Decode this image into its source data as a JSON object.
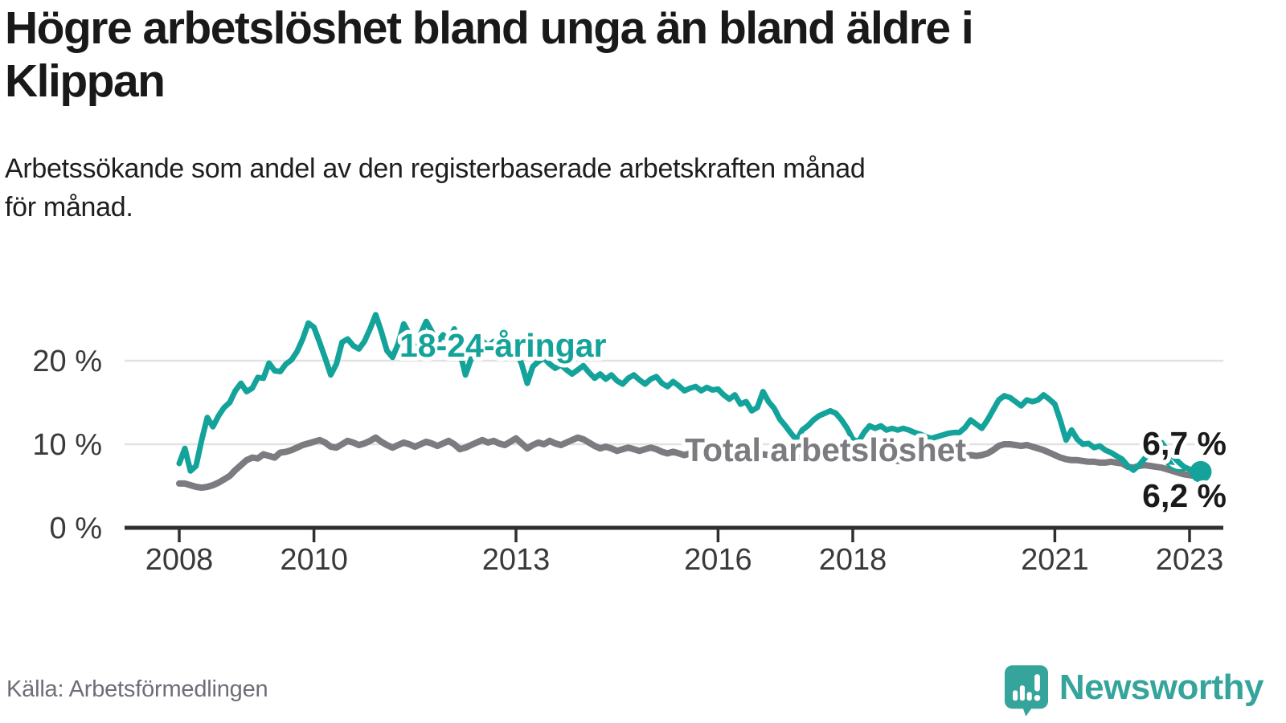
{
  "header": {
    "title_lines": [
      "Högre arbetslöshet bland unga än bland äldre i",
      "Klippan"
    ],
    "subtitle_lines": [
      "Arbetssökande som andel av den registerbaserade arbetskraften månad",
      "för månad."
    ]
  },
  "footer": {
    "source": "Källa: Arbetsförmedlingen",
    "brand": "Newsworthy"
  },
  "colors": {
    "youth_line": "#14a39a",
    "total_line": "#7b7b80",
    "end_label_text": "#1a1a1a",
    "axis_text": "#3a3a3a",
    "grid_line": "#e2e2e2",
    "axis_line": "#2f2f2f",
    "source_text": "#6e6e78",
    "brand_teal": "#35a49b"
  },
  "chart_data": {
    "type": "line",
    "unit": "%",
    "frequency": "monthly",
    "start": "2008-01",
    "end": "2023-03",
    "grid": "horizontal",
    "ylim": [
      0,
      27
    ],
    "x_ticks": [
      2008,
      2010,
      2013,
      2016,
      2018,
      2021,
      2023
    ],
    "y_ticks": [
      {
        "value": 0,
        "label": "0 %"
      },
      {
        "value": 10,
        "label": "10 %"
      },
      {
        "value": 20,
        "label": "20 %"
      }
    ],
    "series": [
      {
        "name": "Total arbetslöshet",
        "color": "#7b7b80",
        "end_label": "6,2 %",
        "values": [
          5.3,
          5.3,
          5.1,
          4.9,
          4.8,
          4.9,
          5.1,
          5.4,
          5.8,
          6.2,
          6.9,
          7.5,
          8.1,
          8.4,
          8.3,
          8.8,
          8.6,
          8.4,
          9.0,
          9.1,
          9.3,
          9.6,
          9.9,
          10.1,
          10.3,
          10.5,
          10.2,
          9.7,
          9.6,
          10.0,
          10.4,
          10.2,
          9.9,
          10.1,
          10.4,
          10.8,
          10.3,
          9.9,
          9.6,
          9.9,
          10.2,
          10.0,
          9.7,
          10.0,
          10.3,
          10.1,
          9.8,
          10.1,
          10.4,
          10.0,
          9.4,
          9.6,
          9.9,
          10.2,
          10.5,
          10.2,
          10.4,
          10.1,
          9.9,
          10.3,
          10.7,
          10.1,
          9.5,
          9.9,
          10.2,
          10.0,
          10.4,
          10.1,
          9.9,
          10.2,
          10.5,
          10.8,
          10.6,
          10.2,
          9.8,
          9.5,
          9.7,
          9.5,
          9.2,
          9.4,
          9.6,
          9.4,
          9.2,
          9.4,
          9.6,
          9.4,
          9.1,
          8.9,
          9.1,
          8.9,
          8.7,
          8.9,
          9.1,
          8.9,
          8.7,
          8.8,
          9.0,
          8.8,
          8.6,
          8.7,
          8.5,
          8.6,
          8.4,
          8.6,
          8.8,
          8.7,
          8.5,
          8.6,
          8.7,
          8.5,
          8.4,
          8.5,
          8.6,
          8.8,
          8.9,
          8.7,
          8.6,
          8.5,
          8.4,
          8.5,
          8.6,
          8.4,
          8.3,
          8.4,
          8.5,
          8.3,
          8.2,
          8.1,
          8.0,
          8.1,
          8.2,
          8.3,
          8.4,
          8.3,
          8.2,
          8.3,
          8.4,
          8.5,
          8.6,
          8.5,
          8.6,
          8.7,
          8.6,
          8.7,
          8.9,
          9.3,
          9.8,
          10.0,
          10.0,
          9.9,
          9.8,
          9.9,
          9.7,
          9.5,
          9.3,
          9.0,
          8.7,
          8.4,
          8.2,
          8.1,
          8.1,
          8.0,
          7.9,
          7.9,
          7.8,
          7.8,
          7.9,
          7.8,
          7.7,
          7.3,
          7.2,
          7.4,
          7.5,
          7.4,
          7.3,
          7.2,
          7.0,
          6.8,
          6.6,
          6.4,
          6.3,
          6.2,
          6.2
        ]
      },
      {
        "name": "18-24-åringar",
        "color": "#14a39a",
        "end_label": "6,7 %",
        "values": [
          7.7,
          9.5,
          6.8,
          7.4,
          10.5,
          13.2,
          12.1,
          13.4,
          14.4,
          15.0,
          16.4,
          17.3,
          16.3,
          16.7,
          18.0,
          17.9,
          19.7,
          18.8,
          18.7,
          19.6,
          20.1,
          21.1,
          22.6,
          24.5,
          24.0,
          22.2,
          20.3,
          18.3,
          19.6,
          22.2,
          22.6,
          21.8,
          21.4,
          22.3,
          23.8,
          25.5,
          23.5,
          21.2,
          20.4,
          22.0,
          24.4,
          23.2,
          21.8,
          23.2,
          24.7,
          23.5,
          22.2,
          23.1,
          22.3,
          23.8,
          21.0,
          18.3,
          20.2,
          21.3,
          22.4,
          21.7,
          22.3,
          21.6,
          21.0,
          20.6,
          21.3,
          19.6,
          17.3,
          19.3,
          19.9,
          20.3,
          19.6,
          19.1,
          19.5,
          18.9,
          18.4,
          18.9,
          19.4,
          18.6,
          17.9,
          18.4,
          17.8,
          18.3,
          17.6,
          17.2,
          17.9,
          18.3,
          17.7,
          17.2,
          17.8,
          18.1,
          17.3,
          16.9,
          17.5,
          17.0,
          16.4,
          16.7,
          16.9,
          16.4,
          16.8,
          16.5,
          16.6,
          15.9,
          15.4,
          15.9,
          14.8,
          15.1,
          14.0,
          14.4,
          16.3,
          15.1,
          14.3,
          13.0,
          12.2,
          11.3,
          10.5,
          11.7,
          12.2,
          12.9,
          13.4,
          13.7,
          14.0,
          13.7,
          12.9,
          11.9,
          10.6,
          10.3,
          11.4,
          12.2,
          11.9,
          12.2,
          11.7,
          11.9,
          11.7,
          11.9,
          11.7,
          11.4,
          11.2,
          10.9,
          10.7,
          10.9,
          11.1,
          11.3,
          11.4,
          11.4,
          12.0,
          12.9,
          12.4,
          11.9,
          12.9,
          14.1,
          15.3,
          15.8,
          15.6,
          15.1,
          14.6,
          15.3,
          15.1,
          15.3,
          15.9,
          15.4,
          14.8,
          12.8,
          10.5,
          11.7,
          10.6,
          10.0,
          10.1,
          9.6,
          9.8,
          9.3,
          9.0,
          8.6,
          8.2,
          7.4,
          6.9,
          7.5,
          8.3,
          9.0,
          9.8,
          10.2,
          9.3,
          8.6,
          7.9,
          7.3,
          7.0,
          6.8,
          6.7
        ]
      }
    ]
  }
}
